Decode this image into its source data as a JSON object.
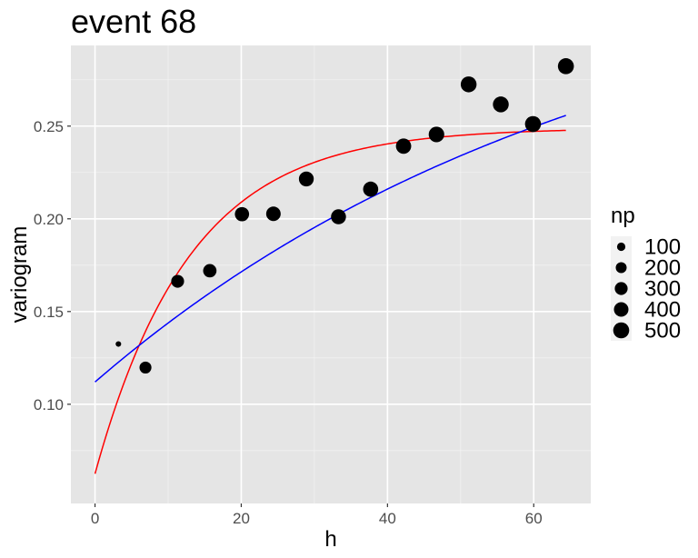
{
  "chart_data": {
    "type": "scatter",
    "title": "event  68",
    "xlabel": "h",
    "ylabel": "variogram",
    "xlim": [
      -3.3,
      67.8
    ],
    "ylim": [
      0.0465,
      0.2935
    ],
    "x_ticks": [
      0,
      20,
      40,
      60
    ],
    "x_tick_labels": [
      "0",
      "20",
      "40",
      "60"
    ],
    "y_ticks": [
      0.1,
      0.15,
      0.2,
      0.25
    ],
    "y_tick_labels": [
      "0.10",
      "0.15",
      "0.20",
      "0.25"
    ],
    "grid": true,
    "background": "#e5e5e5",
    "legend": {
      "title": "np",
      "position": "right",
      "entries": [
        {
          "label": "100",
          "np": 100
        },
        {
          "label": "200",
          "np": 200
        },
        {
          "label": "300",
          "np": 300
        },
        {
          "label": "400",
          "np": 400
        },
        {
          "label": "500",
          "np": 500
        }
      ]
    },
    "points": [
      {
        "h": 3.2,
        "gamma": 0.1325,
        "np": 30
      },
      {
        "h": 6.9,
        "gamma": 0.1198,
        "np": 250
      },
      {
        "h": 11.3,
        "gamma": 0.1663,
        "np": 300
      },
      {
        "h": 15.7,
        "gamma": 0.172,
        "np": 330
      },
      {
        "h": 20.1,
        "gamma": 0.2025,
        "np": 380
      },
      {
        "h": 24.4,
        "gamma": 0.2027,
        "np": 400
      },
      {
        "h": 28.9,
        "gamma": 0.2215,
        "np": 420
      },
      {
        "h": 33.3,
        "gamma": 0.2011,
        "np": 430
      },
      {
        "h": 37.7,
        "gamma": 0.216,
        "np": 440
      },
      {
        "h": 42.2,
        "gamma": 0.2392,
        "np": 450
      },
      {
        "h": 46.7,
        "gamma": 0.2455,
        "np": 470
      },
      {
        "h": 51.1,
        "gamma": 0.2725,
        "np": 490
      },
      {
        "h": 55.5,
        "gamma": 0.2617,
        "np": 490
      },
      {
        "h": 59.9,
        "gamma": 0.2511,
        "np": 500
      },
      {
        "h": 64.4,
        "gamma": 0.2823,
        "np": 500
      }
    ],
    "curves": [
      {
        "color": "#ff0000",
        "model": "exponential",
        "nugget": 0.0625,
        "sill": 0.249,
        "range": 13.0,
        "h_max": 64.4
      },
      {
        "color": "#0000ff",
        "model": "exponential",
        "nugget": 0.112,
        "sill": 0.351,
        "range": 70.0,
        "h_max": 64.4
      }
    ]
  }
}
